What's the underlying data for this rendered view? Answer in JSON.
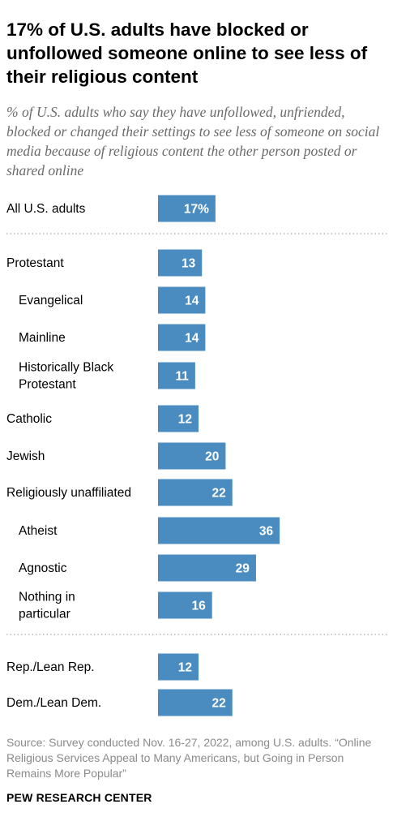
{
  "header": {
    "title": "17% of U.S. adults have blocked or unfollowed someone online to see less of their religious content",
    "subtitle": "% of U.S. adults who say they have unfollowed, unfriended, blocked or changed their settings to see less of someone on social media because of religious content the other person posted or shared online"
  },
  "chart_data": {
    "type": "bar",
    "orientation": "horizontal",
    "categories": [
      "All U.S. adults",
      "Protestant",
      "Evangelical",
      "Mainline",
      "Historically Black Protestant",
      "Catholic",
      "Jewish",
      "Religiously unaffiliated",
      "Atheist",
      "Agnostic",
      "Nothing in particular",
      "Rep./Lean Rep.",
      "Dem./Lean Dem."
    ],
    "values": [
      17,
      13,
      14,
      14,
      11,
      12,
      20,
      22,
      36,
      29,
      16,
      12,
      22
    ],
    "value_labels": [
      "17%",
      "13",
      "14",
      "14",
      "11",
      "12",
      "20",
      "22",
      "36",
      "29",
      "16",
      "12",
      "22"
    ],
    "indented": [
      false,
      false,
      true,
      true,
      true,
      false,
      false,
      false,
      true,
      true,
      true,
      false,
      false
    ],
    "group_dividers_after": [
      "All U.S. adults",
      "Nothing in particular"
    ],
    "bar_color": "#4a8cc0",
    "label_color": "#ffffff",
    "divider_color": "#a6a6a6"
  },
  "footer": {
    "source": "Source: Survey conducted Nov. 16-27, 2022, among U.S. adults. “Online Religious Services Appeal to Many Americans, but Going in Person Remains More Popular”",
    "organization": "PEW RESEARCH CENTER"
  }
}
